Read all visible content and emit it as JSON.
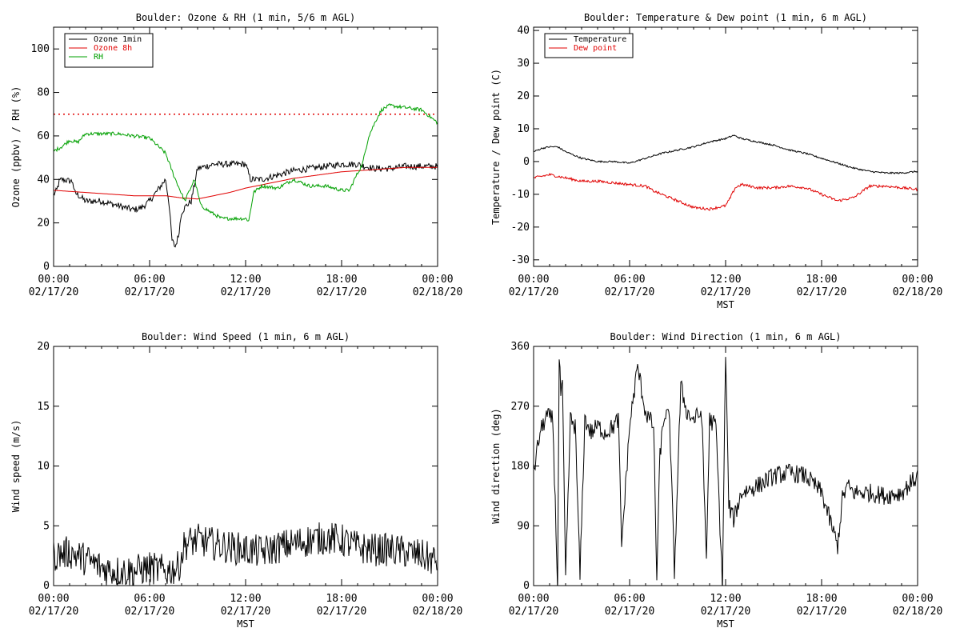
{
  "chart_data": [
    {
      "type": "line",
      "title": "Boulder: Ozone & RH (1 min, 5/6 m AGL)",
      "ylabel": "Ozone (ppbv) / RH (%)",
      "xlabel": "",
      "ylim": [
        0,
        110
      ],
      "yticks": [
        0,
        20,
        40,
        60,
        80,
        100
      ],
      "xticks": [
        {
          "time": "00:00",
          "date": "02/17/20"
        },
        {
          "time": "06:00",
          "date": "02/17/20"
        },
        {
          "time": "12:00",
          "date": "02/17/20"
        },
        {
          "time": "18:00",
          "date": "02/17/20"
        },
        {
          "time": "00:00",
          "date": "02/18/20"
        }
      ],
      "x_unit": "hours since 00:00 02/17/20",
      "legend_position": "top-left",
      "reference_line": {
        "y": 70,
        "color": "#e00000",
        "style": "dotted"
      },
      "series": [
        {
          "name": "Ozone 1min",
          "color": "#000000",
          "noise": 1.5,
          "x": [
            0,
            0.2,
            0.35,
            0.5,
            1.2,
            1.3,
            1.5,
            2.0,
            3.0,
            4.0,
            4.5,
            5.0,
            5.5,
            6.0,
            6.5,
            7.0,
            7.2,
            7.4,
            7.6,
            7.8,
            8.0,
            8.3,
            8.6,
            9.0,
            9.5,
            10,
            11,
            12,
            12.3,
            12.6,
            13,
            14,
            15,
            16,
            17,
            18,
            19,
            19.5,
            20,
            21,
            22,
            23,
            24
          ],
          "y": [
            33,
            35,
            39,
            40,
            39,
            34,
            33,
            30,
            30,
            28,
            27,
            26,
            27,
            30,
            35,
            40,
            30,
            12,
            9,
            14,
            25,
            28,
            30,
            45,
            46,
            47,
            47,
            47,
            40,
            40,
            40,
            42,
            44,
            45,
            46,
            47,
            47,
            46,
            45,
            45,
            46,
            46,
            46
          ]
        },
        {
          "name": "Ozone 8h",
          "color": "#e00000",
          "noise": 0,
          "x": [
            0,
            1,
            2,
            3,
            4,
            5,
            6,
            7,
            8,
            9,
            10,
            11,
            12,
            13,
            14,
            15,
            16,
            17,
            18,
            19,
            20,
            21,
            22,
            23,
            24
          ],
          "y": [
            35,
            34.5,
            34,
            33.5,
            33,
            32.5,
            32.5,
            32.5,
            31.5,
            31,
            32.5,
            34,
            36,
            37.5,
            39,
            40.5,
            41.5,
            42.5,
            43.5,
            44,
            44.5,
            45,
            45.5,
            45.5,
            45.5
          ]
        },
        {
          "name": "RH",
          "color": "#00a000",
          "noise": 0.8,
          "x": [
            0,
            0.5,
            1,
            1.5,
            2,
            3,
            4,
            5,
            6,
            7,
            7.5,
            8.2,
            8.8,
            9.2,
            9.8,
            10.5,
            11,
            12,
            12.2,
            12.5,
            13,
            14,
            15,
            16,
            17,
            18,
            18.5,
            18.8,
            19.3,
            19.7,
            20.2,
            20.5,
            21,
            22,
            23,
            24
          ],
          "y": [
            53,
            55,
            58,
            57,
            61,
            61,
            61,
            60,
            59,
            52,
            42,
            30,
            40,
            28,
            25,
            22,
            22,
            22,
            21,
            34,
            37,
            36,
            40,
            37,
            37,
            35,
            35,
            40,
            47,
            60,
            68,
            72,
            74,
            73,
            72,
            66
          ]
        }
      ]
    },
    {
      "type": "line",
      "title": "Boulder: Temperature & Dew point (1 min, 6 m AGL)",
      "ylabel": "Temperature / Dew point (C)",
      "xlabel": "MST",
      "ylim": [
        -32,
        41
      ],
      "yticks": [
        -30,
        -20,
        -10,
        0,
        10,
        20,
        30,
        40
      ],
      "xticks": [
        {
          "time": "00:00",
          "date": "02/17/20"
        },
        {
          "time": "06:00",
          "date": "02/17/20"
        },
        {
          "time": "12:00",
          "date": "02/17/20"
        },
        {
          "time": "18:00",
          "date": "02/17/20"
        },
        {
          "time": "00:00",
          "date": "02/18/20"
        }
      ],
      "x_unit": "hours since 00:00 02/17/20",
      "legend_position": "top-left",
      "series": [
        {
          "name": "Temperature",
          "color": "#000000",
          "noise": 0.25,
          "x": [
            0,
            0.5,
            1,
            1.5,
            2,
            3,
            4,
            5,
            6,
            7,
            8,
            9,
            10,
            11,
            12,
            12.5,
            13,
            14,
            15,
            16,
            17,
            18,
            19,
            20,
            21,
            22,
            23,
            24
          ],
          "y": [
            3,
            4,
            4.5,
            4.5,
            3,
            1,
            0,
            0,
            -0.5,
            1,
            2.5,
            3.5,
            4.5,
            6,
            7,
            8,
            7,
            6,
            5,
            3.5,
            2.5,
            1,
            -0.5,
            -2,
            -3,
            -3.5,
            -3.5,
            -3
          ]
        },
        {
          "name": "Dew point",
          "color": "#e00000",
          "noise": 0.4,
          "x": [
            0,
            0.5,
            1,
            2,
            3,
            4,
            5,
            6,
            7,
            7.5,
            8,
            8.5,
            9,
            9.5,
            10,
            11,
            12,
            12.3,
            12.6,
            13,
            14,
            15,
            16,
            17,
            18,
            19,
            20,
            21,
            22,
            23,
            24
          ],
          "y": [
            -5,
            -4.5,
            -4,
            -5,
            -6,
            -6,
            -6.5,
            -7,
            -7.5,
            -9,
            -10,
            -11,
            -12,
            -13,
            -14,
            -14.5,
            -13.5,
            -11,
            -8,
            -7,
            -8,
            -8,
            -7.5,
            -8,
            -10,
            -12,
            -11,
            -7.5,
            -7.5,
            -8,
            -8.5
          ]
        }
      ]
    },
    {
      "type": "line",
      "title": "Boulder: Wind Speed (1 min, 6 m AGL)",
      "ylabel": "Wind speed (m/s)",
      "xlabel": "MST",
      "ylim": [
        0,
        20
      ],
      "yticks": [
        0,
        5,
        10,
        15,
        20
      ],
      "xticks": [
        {
          "time": "00:00",
          "date": "02/17/20"
        },
        {
          "time": "06:00",
          "date": "02/17/20"
        },
        {
          "time": "12:00",
          "date": "02/17/20"
        },
        {
          "time": "18:00",
          "date": "02/17/20"
        },
        {
          "time": "00:00",
          "date": "02/18/20"
        }
      ],
      "x_unit": "hours since 00:00 02/17/20",
      "series": [
        {
          "name": "",
          "color": "#000000",
          "noise": 1.4,
          "x": [
            0,
            1,
            2,
            3,
            4,
            5,
            6,
            7,
            7.8,
            8.2,
            9,
            10,
            11,
            12,
            13,
            14,
            15,
            16,
            17,
            18,
            19,
            20,
            21,
            22,
            23,
            24
          ],
          "y": [
            2.5,
            2.8,
            2.2,
            1.5,
            1.2,
            1.2,
            1.5,
            1.2,
            1.5,
            3.5,
            3.8,
            3.5,
            3.2,
            3.0,
            2.8,
            3.2,
            3.5,
            3.8,
            4.0,
            3.8,
            3.2,
            3.0,
            3.0,
            2.8,
            2.5,
            2.0
          ]
        }
      ]
    },
    {
      "type": "line",
      "title": "Boulder: Wind Direction (1 min, 6 m AGL)",
      "ylabel": "Wind direction (deg)",
      "xlabel": "MST",
      "ylim": [
        0,
        360
      ],
      "yticks": [
        0,
        90,
        180,
        270,
        360
      ],
      "xticks": [
        {
          "time": "00:00",
          "date": "02/17/20"
        },
        {
          "time": "06:00",
          "date": "02/17/20"
        },
        {
          "time": "12:00",
          "date": "02/17/20"
        },
        {
          "time": "18:00",
          "date": "02/17/20"
        },
        {
          "time": "00:00",
          "date": "02/18/20"
        }
      ],
      "x_unit": "hours since 00:00 02/17/20",
      "series": [
        {
          "name": "",
          "color": "#000000",
          "noise": 14,
          "x": [
            0,
            0.4,
            0.8,
            1.2,
            1.5,
            1.6,
            1.7,
            1.8,
            2.0,
            2.3,
            2.6,
            2.9,
            3.2,
            3.4,
            3.6,
            4.0,
            4.5,
            5.0,
            5.3,
            5.5,
            6.0,
            6.5,
            7.0,
            7.5,
            7.7,
            7.9,
            8.2,
            8.5,
            8.8,
            9.2,
            9.6,
            10,
            10.5,
            10.8,
            11,
            11.4,
            11.8,
            12,
            12.2,
            12.5,
            13,
            14,
            15,
            16,
            17,
            18,
            18.5,
            19,
            19.3,
            19.6,
            20,
            21,
            22,
            23,
            24
          ],
          "y": [
            170,
            230,
            255,
            250,
            0,
            340,
            290,
            300,
            10,
            250,
            240,
            15,
            250,
            240,
            230,
            240,
            230,
            240,
            250,
            60,
            240,
            330,
            260,
            240,
            10,
            200,
            260,
            250,
            20,
            300,
            260,
            250,
            260,
            40,
            250,
            240,
            0,
            350,
            120,
            100,
            140,
            150,
            165,
            170,
            165,
            140,
            100,
            60,
            130,
            150,
            140,
            140,
            135,
            140,
            165
          ]
        }
      ]
    }
  ]
}
